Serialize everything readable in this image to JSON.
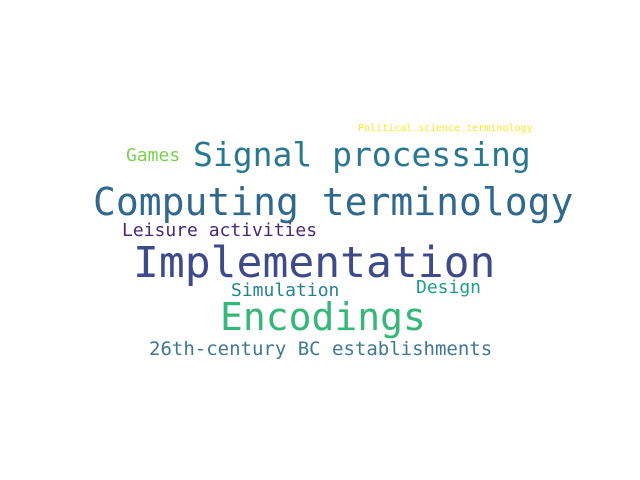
{
  "words": [
    {
      "text": "Political science terminology",
      "color": "#fde725"
    },
    {
      "text": "Games",
      "color": "#7ad151"
    },
    {
      "text": "Signal processing",
      "color": "#2a788e"
    },
    {
      "text": "Computing terminology",
      "color": "#31688e"
    },
    {
      "text": "Leisure activities",
      "color": "#482878"
    },
    {
      "text": "Implementation",
      "color": "#3e4a89"
    },
    {
      "text": "Simulation",
      "color": "#26828e"
    },
    {
      "text": "Design",
      "color": "#1f9e89"
    },
    {
      "text": "Encodings",
      "color": "#35b779"
    },
    {
      "text": "26th-century BC establishments",
      "color": "#3e7893"
    }
  ]
}
